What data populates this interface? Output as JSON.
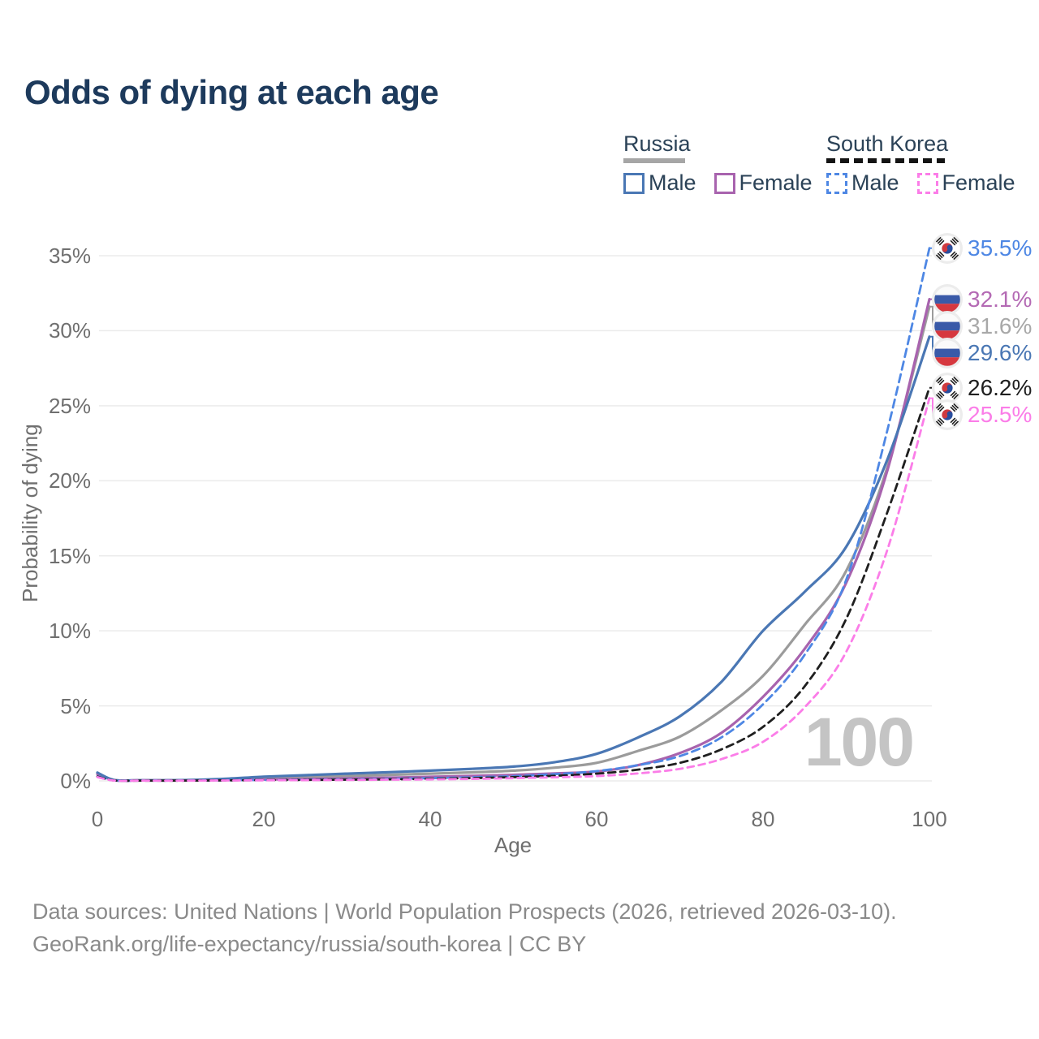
{
  "legend": {
    "groups": [
      {
        "label": "Russia",
        "line_style": "solid",
        "underline_color": "#a6a6a6",
        "items": [
          {
            "label": "Male",
            "color": "#4a77b4"
          },
          {
            "label": "Female",
            "color": "#a863ae"
          }
        ]
      },
      {
        "label": "South Korea",
        "line_style": "dashed",
        "underline_color": "#141414",
        "items": [
          {
            "label": "Male",
            "color": "#4e87e4"
          },
          {
            "label": "Female",
            "color": "#fb7de8"
          }
        ]
      }
    ]
  },
  "chart_data": {
    "type": "line",
    "title": "Odds of dying at each age",
    "xlabel": "Age",
    "ylabel": "Probability of dying",
    "x_ticks": [
      "0",
      "20",
      "40",
      "60",
      "80",
      "100"
    ],
    "y_ticks": [
      "0%",
      "5%",
      "10%",
      "15%",
      "20%",
      "25%",
      "30%",
      "35%"
    ],
    "xlim": [
      0,
      100
    ],
    "ylim_percent": [
      0,
      36.5
    ],
    "grid": "horizontal",
    "legend_position": "top-right",
    "watermark": "100",
    "x": [
      0,
      2,
      5,
      10,
      15,
      20,
      25,
      30,
      35,
      40,
      45,
      50,
      55,
      60,
      65,
      70,
      75,
      80,
      85,
      90,
      95,
      100
    ],
    "series": [
      {
        "id": "russia-total",
        "name": "Russia",
        "sex": "Both",
        "flag": "ru",
        "color": "#9b9b9b",
        "label_color": "#a8a8a8",
        "dashed": false,
        "end_label": "31.6%",
        "end_value": 31.6,
        "values": [
          0.5,
          0.055,
          0.035,
          0.045,
          0.1,
          0.19,
          0.25,
          0.32,
          0.4,
          0.48,
          0.57,
          0.68,
          0.88,
          1.2,
          2.0,
          2.95,
          4.7,
          7.0,
          10.4,
          14.0,
          21.0,
          31.6
        ]
      },
      {
        "id": "russia-female",
        "name": "Russia Female",
        "sex": "Female",
        "flag": "ru",
        "color": "#a863ae",
        "label_color": "#b46ab4",
        "dashed": false,
        "end_label": "32.1%",
        "end_value": 32.1,
        "values": [
          0.45,
          0.05,
          0.03,
          0.04,
          0.06,
          0.09,
          0.12,
          0.16,
          0.21,
          0.27,
          0.33,
          0.4,
          0.5,
          0.62,
          1.05,
          1.85,
          3.2,
          5.6,
          8.8,
          13.2,
          20.8,
          32.1
        ]
      },
      {
        "id": "russia-male",
        "name": "Russia Male",
        "sex": "Male",
        "flag": "ru",
        "color": "#4a77b4",
        "label_color": "#4a77b4",
        "dashed": false,
        "end_label": "29.6%",
        "end_value": 29.6,
        "values": [
          0.55,
          0.06,
          0.04,
          0.05,
          0.13,
          0.28,
          0.38,
          0.48,
          0.58,
          0.68,
          0.8,
          0.95,
          1.25,
          1.8,
          2.9,
          4.3,
          6.6,
          10.0,
          12.6,
          15.6,
          21.5,
          29.6
        ]
      },
      {
        "id": "south-korea-male",
        "name": "South Korea Male",
        "sex": "Male",
        "flag": "kr",
        "color": "#4e87e4",
        "label_color": "#4e87e4",
        "dashed": true,
        "dash_array": "10 6",
        "end_label": "35.5%",
        "end_value": 35.5,
        "values": [
          0.3,
          0.03,
          0.02,
          0.02,
          0.04,
          0.06,
          0.08,
          0.1,
          0.13,
          0.18,
          0.24,
          0.31,
          0.45,
          0.65,
          1.05,
          1.65,
          2.9,
          5.1,
          8.4,
          13.4,
          23.5,
          35.5
        ]
      },
      {
        "id": "south-korea-total",
        "name": "South Korea",
        "sex": "Both",
        "flag": "kr",
        "color": "#1f1f1f",
        "label_color": "#1f1f1f",
        "dashed": true,
        "dash_array": "9 6",
        "end_label": "26.2%",
        "end_value": 26.2,
        "values": [
          0.28,
          0.025,
          0.018,
          0.018,
          0.033,
          0.05,
          0.065,
          0.08,
          0.105,
          0.14,
          0.185,
          0.25,
          0.34,
          0.48,
          0.75,
          1.2,
          2.1,
          3.6,
          6.3,
          10.8,
          18.0,
          26.2
        ]
      },
      {
        "id": "south-korea-female",
        "name": "South Korea Female",
        "sex": "Female",
        "flag": "kr",
        "color": "#fb7de8",
        "label_color": "#fb7de8",
        "dashed": true,
        "dash_array": "8 6",
        "end_label": "25.5%",
        "end_value": 25.5,
        "values": [
          0.25,
          0.02,
          0.015,
          0.015,
          0.025,
          0.04,
          0.05,
          0.06,
          0.08,
          0.1,
          0.13,
          0.18,
          0.24,
          0.32,
          0.5,
          0.8,
          1.45,
          2.6,
          4.9,
          8.6,
          15.5,
          25.5
        ]
      }
    ]
  },
  "footer": {
    "line1": "Data sources: United Nations | World Population Prospects (2026, retrieved 2026-03-10).",
    "line2": "GeoRank.org/life-expectancy/russia/south-korea | CC BY"
  }
}
